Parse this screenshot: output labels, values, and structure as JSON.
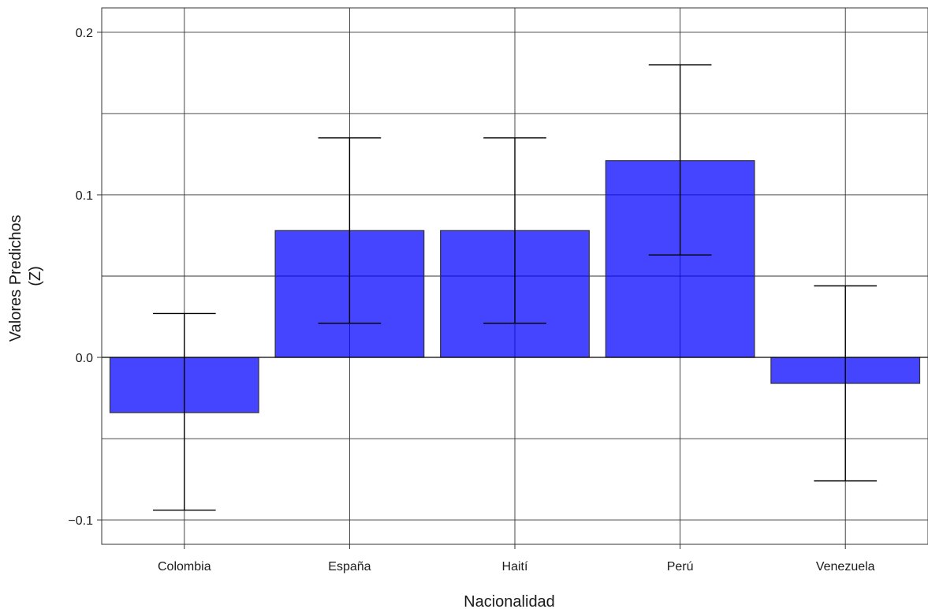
{
  "chart_data": {
    "type": "bar",
    "categories": [
      "Colombia",
      "España",
      "Haití",
      "Perú",
      "Venezuela"
    ],
    "values": [
      -0.034,
      0.078,
      0.078,
      0.121,
      -0.016
    ],
    "error_low": [
      -0.094,
      0.021,
      0.021,
      0.063,
      -0.076
    ],
    "error_high": [
      0.027,
      0.135,
      0.135,
      0.18,
      0.044
    ],
    "title": "",
    "xlabel": "Nacionalidad",
    "ylabel": [
      "Valores Predichos",
      "(Z)"
    ],
    "ylim": [
      -0.115,
      0.215
    ],
    "y_ticks": [
      -0.1,
      0.0,
      0.1,
      0.2
    ],
    "y_tick_labels": [
      "−0.1",
      "0.0",
      "0.1",
      "0.2"
    ],
    "y_minor_gridlines": [
      -0.05,
      0.05,
      0.15
    ],
    "grid": true,
    "bar_color": "#0000ff",
    "bar_border_color": "#333333",
    "errorbar_color": "#000000"
  }
}
